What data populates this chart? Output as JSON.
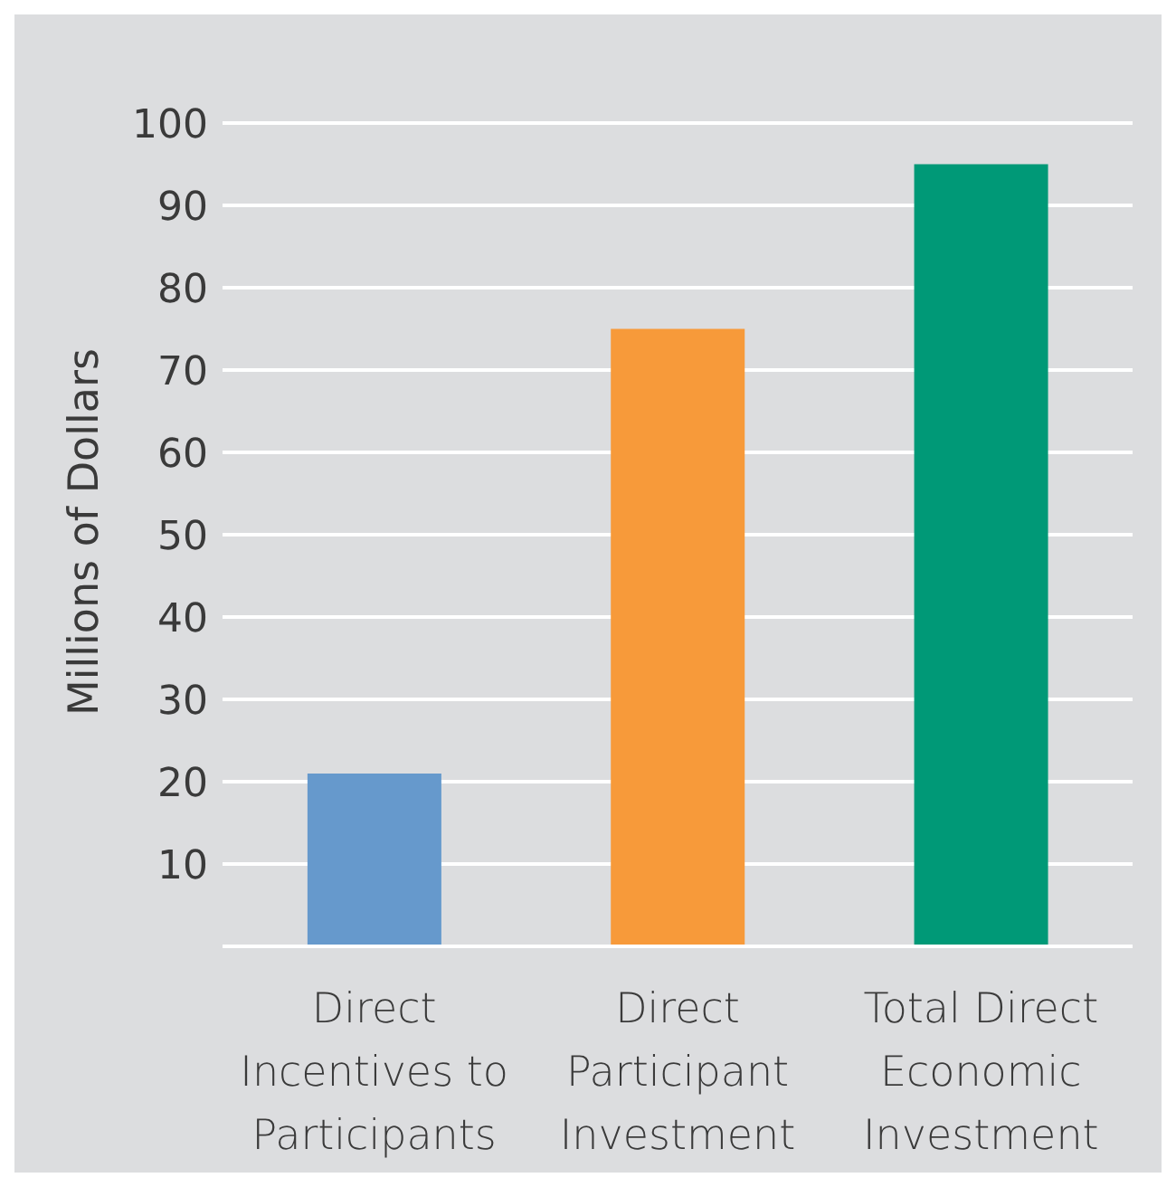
{
  "chart_data": {
    "type": "bar",
    "ylabel": "Millions of Dollars",
    "categories": [
      "Direct Incentives to Participants",
      "Direct Participant Investment",
      "Total Direct Economic Investment"
    ],
    "values": [
      21,
      75,
      95
    ],
    "colors": [
      "#6699cc",
      "#f79a3a",
      "#009977"
    ],
    "ylim": [
      0,
      100
    ],
    "yticks": [
      10,
      20,
      30,
      40,
      50,
      60,
      70,
      80,
      90,
      100
    ],
    "grid": "y"
  }
}
